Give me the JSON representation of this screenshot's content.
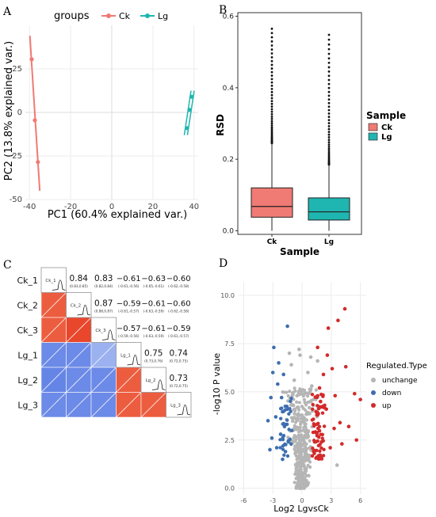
{
  "panels": {
    "A": "A",
    "B": "B",
    "C": "C",
    "D": "D"
  },
  "colors": {
    "ck": "#f07a74",
    "lg": "#1fb5b0",
    "up": "#d32a2a",
    "down": "#3e6eb0",
    "unchange": "#b5b5b5",
    "neg": "#6a87e8",
    "pos": "#e8553a"
  },
  "chart_data": [
    {
      "panel": "A",
      "type": "scatter",
      "legend_title": "groups",
      "legend": [
        "Ck",
        "Lg"
      ],
      "xlabel": "PC1 (60.4% explained var.)",
      "ylabel": "PC2 (13.8% explained var.)",
      "xlim": [
        -42,
        42
      ],
      "ylim": [
        -50,
        50
      ],
      "xticks": [
        "-40",
        "-20",
        "0",
        "20",
        "40"
      ],
      "yticks": [
        "25",
        "0",
        "-25",
        "-50"
      ],
      "series": [
        {
          "name": "Ck",
          "points": [
            [
              -38.9,
              30.5
            ],
            [
              -37.4,
              -4.5
            ],
            [
              -35.9,
              -28.5
            ]
          ],
          "line": [
            [
              -39.8,
              44
            ],
            [
              -35,
              -45
            ]
          ]
        },
        {
          "name": "Lg",
          "points": [
            [
              36.6,
              -9
            ],
            [
              37.8,
              1.5
            ],
            [
              38.8,
              9
            ]
          ],
          "line": [
            [
              36,
              -13
            ],
            [
              39.3,
              12.5
            ]
          ]
        }
      ]
    },
    {
      "panel": "B",
      "type": "box",
      "xlabel": "Sample",
      "ylabel": "RSD",
      "legend_title": "Sample",
      "categories": [
        "Ck",
        "Lg"
      ],
      "ylim": [
        -0.01,
        0.61
      ],
      "yticks": [
        "0.0",
        "0.2",
        "0.4",
        "0.6"
      ],
      "boxes": [
        {
          "name": "Ck",
          "q1": 0.038,
          "median": 0.068,
          "q3": 0.12,
          "whisker_low": 0.0,
          "whisker_high": 0.245,
          "outlier_max": 0.565
        },
        {
          "name": "Lg",
          "q1": 0.03,
          "median": 0.053,
          "q3": 0.092,
          "whisker_low": 0.0,
          "whisker_high": 0.185,
          "outlier_max": 0.548
        }
      ]
    },
    {
      "panel": "C",
      "type": "heatmap",
      "labels": [
        "Ck_1",
        "Ck_2",
        "Ck_3",
        "Lg_1",
        "Lg_2",
        "Lg_3"
      ],
      "upper": [
        {
          "r": 0,
          "c": 1,
          "v": "0.84",
          "ci": "(0.83,0.85)"
        },
        {
          "r": 0,
          "c": 2,
          "v": "0.83",
          "ci": "(0.82,0.84)"
        },
        {
          "r": 0,
          "c": 3,
          "v": "−0.61",
          "ci": "(-0.61,-0.56)"
        },
        {
          "r": 0,
          "c": 4,
          "v": "−0.63",
          "ci": "(-0.65,-0.61)"
        },
        {
          "r": 0,
          "c": 5,
          "v": "−0.60",
          "ci": "(-0.62,-0.58)"
        },
        {
          "r": 1,
          "c": 2,
          "v": "0.87",
          "ci": "(0.86,0.87)"
        },
        {
          "r": 1,
          "c": 3,
          "v": "−0.59",
          "ci": "(-0.61,-0.57)"
        },
        {
          "r": 1,
          "c": 4,
          "v": "−0.61",
          "ci": "(-0.63,-0.59)"
        },
        {
          "r": 1,
          "c": 5,
          "v": "−0.60",
          "ci": "(-0.62,-0.58)"
        },
        {
          "r": 2,
          "c": 3,
          "v": "−0.57",
          "ci": "(-0.59,-0.56)"
        },
        {
          "r": 2,
          "c": 4,
          "v": "−0.61",
          "ci": "(-0.63,-0.59)"
        },
        {
          "r": 2,
          "c": 5,
          "v": "−0.59",
          "ci": "(-0.61,-0.57)"
        },
        {
          "r": 3,
          "c": 4,
          "v": "0.75",
          "ci": "(0.73,0.76)"
        },
        {
          "r": 3,
          "c": 5,
          "v": "0.74",
          "ci": "(0.72,0.75)"
        },
        {
          "r": 4,
          "c": 5,
          "v": "0.73",
          "ci": "(0.72,0.75)"
        }
      ],
      "lower": [
        {
          "r": 1,
          "c": 0,
          "v": 0.84
        },
        {
          "r": 2,
          "c": 0,
          "v": 0.83
        },
        {
          "r": 2,
          "c": 1,
          "v": 0.87
        },
        {
          "r": 3,
          "c": 0,
          "v": -0.61
        },
        {
          "r": 3,
          "c": 1,
          "v": -0.59
        },
        {
          "r": 3,
          "c": 2,
          "v": -0.57
        },
        {
          "r": 4,
          "c": 0,
          "v": -0.63
        },
        {
          "r": 4,
          "c": 1,
          "v": -0.61
        },
        {
          "r": 4,
          "c": 2,
          "v": -0.61
        },
        {
          "r": 4,
          "c": 3,
          "v": 0.75
        },
        {
          "r": 5,
          "c": 0,
          "v": -0.6
        },
        {
          "r": 5,
          "c": 1,
          "v": -0.6
        },
        {
          "r": 5,
          "c": 2,
          "v": -0.59
        },
        {
          "r": 5,
          "c": 3,
          "v": 0.74
        },
        {
          "r": 5,
          "c": 4,
          "v": 0.73
        }
      ]
    },
    {
      "panel": "D",
      "type": "scatter",
      "xlabel": "Log2 LgvsCk",
      "ylabel": "-log10 P value",
      "legend_title": "Regulated.Type",
      "legend": [
        "unchange",
        "down",
        "up"
      ],
      "xlim": [
        -6.6,
        6.6
      ],
      "ylim": [
        -0.3,
        10.7
      ],
      "xticks": [
        "-6",
        "-3",
        "0",
        "3",
        "6"
      ],
      "yticks": [
        "0.0",
        "2.5",
        "5.0",
        "7.5",
        "10.0"
      ],
      "series": [
        {
          "name": "up",
          "points": [
            [
              4.4,
              9.3
            ],
            [
              3.7,
              8.7
            ],
            [
              2.7,
              8.3
            ],
            [
              1.6,
              7.3
            ],
            [
              2.6,
              6.9
            ],
            [
              3.1,
              6.2
            ],
            [
              4.5,
              6.3
            ],
            [
              2.2,
              5.9
            ],
            [
              1.8,
              5.2
            ],
            [
              3.4,
              4.8
            ],
            [
              5.4,
              4.9
            ],
            [
              6.0,
              4.6
            ],
            [
              4.8,
              3.2
            ],
            [
              1.6,
              3.8
            ],
            [
              2.5,
              4.1
            ],
            [
              1.4,
              2.9
            ],
            [
              2.0,
              2.4
            ],
            [
              3.9,
              3.4
            ],
            [
              1.2,
              1.9
            ],
            [
              2.9,
              2.1
            ],
            [
              4.1,
              2.3
            ],
            [
              1.5,
              1.6
            ],
            [
              5.6,
              2.5
            ],
            [
              3.3,
              3.1
            ],
            [
              1.9,
              4.5
            ]
          ]
        },
        {
          "name": "down",
          "points": [
            [
              -1.5,
              8.4
            ],
            [
              -2.9,
              7.3
            ],
            [
              -2.4,
              6.5
            ],
            [
              -3.0,
              6.0
            ],
            [
              -1.9,
              5.9
            ],
            [
              -2.5,
              5.4
            ],
            [
              -3.2,
              4.7
            ],
            [
              -2.1,
              4.7
            ],
            [
              -1.5,
              4.1
            ],
            [
              -2.7,
              3.7
            ],
            [
              -3.5,
              3.5
            ],
            [
              -1.8,
              3.2
            ],
            [
              -2.2,
              2.8
            ],
            [
              -3.1,
              2.6
            ],
            [
              -1.4,
              2.4
            ],
            [
              -2.6,
              2.1
            ],
            [
              -3.3,
              2.0
            ],
            [
              -1.7,
              1.9
            ],
            [
              -2.0,
              1.5
            ]
          ]
        },
        {
          "name": "unchange",
          "points": [
            [
              -0.1,
              0.0
            ],
            [
              0.2,
              0.3
            ],
            [
              -0.3,
              0.6
            ],
            [
              0.4,
              0.9
            ],
            [
              -0.5,
              1.2
            ],
            [
              0.6,
              1.5
            ],
            [
              -0.7,
              1.8
            ],
            [
              0.8,
              2.1
            ],
            [
              -0.2,
              2.4
            ],
            [
              0.5,
              2.7
            ],
            [
              -0.9,
              3.0
            ],
            [
              0.3,
              3.3
            ],
            [
              -0.6,
              3.6
            ],
            [
              0.7,
              3.9
            ],
            [
              -0.4,
              4.2
            ],
            [
              0.9,
              4.5
            ],
            [
              -1.0,
              4.8
            ],
            [
              0.1,
              5.1
            ],
            [
              1.0,
              5.3
            ],
            [
              -0.8,
              5.6
            ],
            [
              0.6,
              6.0
            ],
            [
              -1.1,
              6.4
            ],
            [
              -0.2,
              6.9
            ],
            [
              0.9,
              6.8
            ],
            [
              1.6,
              6.6
            ],
            [
              -1.3,
              7.0
            ],
            [
              3.6,
              1.2
            ],
            [
              -0.3,
              7.2
            ]
          ]
        }
      ]
    }
  ]
}
